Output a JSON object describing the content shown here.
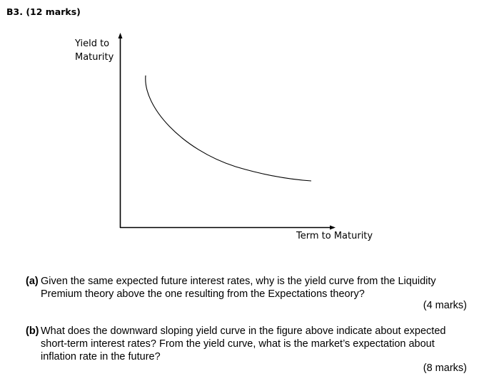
{
  "heading": "B3. (12 marks)",
  "figure": {
    "y_axis_label_line1": "Yield to",
    "y_axis_label_line2": "Maturity",
    "x_axis_label": "Term to Maturity",
    "curve_shape": "downward-sloping convex yield curve"
  },
  "questions": [
    {
      "label": "(a)",
      "text": "Given the same expected future interest rates, why is the yield curve from the Liquidity Premium theory above the one resulting from the Expectations theory?",
      "marks": "(4 marks)"
    },
    {
      "label": "(b)",
      "text": "What does the downward sloping yield curve in the figure above indicate about expected short-term interest rates? From the yield curve, what is the market’s expectation about inflation rate in the future?",
      "marks": "(8 marks)"
    }
  ]
}
